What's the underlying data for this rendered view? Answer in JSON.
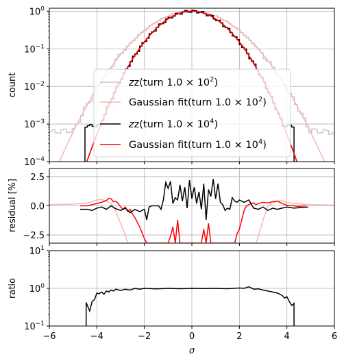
{
  "chart_data": [
    {
      "type": "line",
      "panel": "top",
      "ylabel": "count",
      "yscale": "log",
      "ylim": [
        0.0001,
        1.2
      ],
      "xlim": [
        -6,
        6
      ],
      "yticks": [
        {
          "value": 0.0001,
          "base": "10",
          "exp": "−4"
        },
        {
          "value": 0.001,
          "base": "10",
          "exp": "−3"
        },
        {
          "value": 0.01,
          "base": "10",
          "exp": "−2"
        },
        {
          "value": 0.1,
          "base": "10",
          "exp": "−1"
        },
        {
          "value": 1,
          "base": "10",
          "exp": "0"
        }
      ],
      "legend_position": "center-lower",
      "series": [
        {
          "key": "z100",
          "legend_base": "z(turn 1.0 × 10",
          "legend_exp": "2",
          "legend_tail": ")",
          "color": "#c8c8c8",
          "style": "step",
          "sigma_rms": 1.3,
          "tail_level": 0.0009
        },
        {
          "key": "fit100",
          "legend_base": "Gaussian fit(turn 1.0 × 10",
          "legend_exp": "2",
          "legend_tail": ")",
          "color": "#f7b6b6",
          "style": "line",
          "sigma": 1.3
        },
        {
          "key": "z10000",
          "legend_base": "z(turn 1.0 × 10",
          "legend_exp": "4",
          "legend_tail": ")",
          "color": "#000000",
          "style": "step",
          "sigma_rms": 1.03,
          "range": [
            -4.5,
            4.3
          ]
        },
        {
          "key": "fit10000",
          "legend_base": "Gaussian fit(turn 1.0 × 10",
          "legend_exp": "4",
          "legend_tail": ")",
          "color": "#ff0000",
          "style": "line",
          "sigma": 1.03
        }
      ]
    },
    {
      "type": "line",
      "panel": "middle",
      "ylabel": "residual [%]",
      "ylim": [
        -3.2,
        3.2
      ],
      "xlim": [
        -6,
        6
      ],
      "yticks": [
        -2.5,
        0.0,
        2.5
      ],
      "ytick_labels": [
        "−2.5",
        "0.0",
        "2.5"
      ],
      "series": [
        {
          "key": "res100",
          "color": "#f7b6b6",
          "x": [
            -6.0,
            -5.0,
            -4.6,
            -4.3,
            -4.0,
            -3.8,
            -3.6,
            -3.4,
            -3.2,
            -3.0,
            -2.8,
            -2.7,
            -2.6,
            -2.5,
            2.5,
            2.6,
            2.7,
            2.8,
            3.0,
            3.2,
            3.4,
            3.6,
            3.8,
            4.0,
            4.3,
            4.6,
            5.0,
            6.0
          ],
          "y": [
            0.1,
            0.15,
            0.2,
            0.3,
            0.5,
            0.55,
            0.4,
            0.2,
            -0.5,
            -1.5,
            -2.5,
            -3.2,
            -3.2,
            -3.2,
            -3.2,
            -3.2,
            -3.2,
            -2.6,
            -1.2,
            0.0,
            0.2,
            0.4,
            0.45,
            0.3,
            0.2,
            0.15,
            0.1,
            0.05
          ]
        },
        {
          "key": "res10000_red",
          "color": "#ff0000",
          "x": [
            -4.7,
            -4.4,
            -4.2,
            -4.0,
            -3.8,
            -3.6,
            -3.5,
            -3.4,
            -3.3,
            -3.2,
            -3.1,
            -3.0,
            -2.9,
            -2.8,
            -2.7,
            -2.6,
            -2.5,
            -2.4,
            -2.3,
            -2.2,
            -2.1,
            -2.0,
            -1.9,
            -1.8,
            -1.7,
            -1.6,
            -1.5,
            -1.4,
            -1.3,
            -1.2,
            -1.1,
            -1.0,
            -0.9,
            -0.8,
            -0.7,
            -0.6,
            -0.5,
            -0.4,
            -0.3,
            -0.2,
            -0.1,
            0.0,
            0.1,
            0.2,
            0.3,
            0.4,
            0.5,
            0.6,
            0.7,
            0.8,
            0.9,
            1.0,
            1.1,
            1.2,
            1.3,
            1.4,
            1.5,
            1.6,
            1.7,
            1.8,
            1.9,
            2.0,
            2.1,
            2.2,
            2.3,
            2.4,
            2.5,
            2.6,
            2.7,
            2.8,
            3.0,
            3.2,
            3.4,
            3.6,
            3.8,
            4.0,
            4.3,
            4.5,
            4.8
          ],
          "y": [
            0.0,
            0.0,
            0.1,
            0.2,
            0.3,
            0.45,
            0.65,
            0.6,
            0.35,
            0.4,
            0.2,
            -0.1,
            -0.3,
            -0.1,
            -0.5,
            -0.3,
            -0.7,
            -1.0,
            -1.4,
            -1.8,
            -2.3,
            -2.8,
            -3.2,
            -3.2,
            -3.2,
            -3.2,
            -3.2,
            -3.2,
            -3.2,
            -3.2,
            -3.2,
            -3.2,
            -2.6,
            -1.8,
            -3.2,
            -1.2,
            -3.2,
            -3.2,
            -3.2,
            -3.2,
            -3.2,
            -3.2,
            -3.2,
            -3.2,
            -3.2,
            -3.2,
            -2.0,
            -3.2,
            -1.5,
            -3.2,
            -3.2,
            -3.2,
            -3.2,
            -3.2,
            -3.2,
            -3.2,
            -3.2,
            -3.2,
            -3.2,
            -3.2,
            -2.4,
            -2.0,
            -1.2,
            -0.4,
            0.0,
            0.1,
            0.2,
            0.25,
            0.1,
            0.2,
            0.3,
            0.25,
            0.35,
            0.4,
            0.2,
            0.05,
            0.0,
            -0.05,
            0.0
          ]
        },
        {
          "key": "res10000_black",
          "color": "#000000",
          "x": [
            -4.7,
            -4.4,
            -4.2,
            -4.0,
            -3.8,
            -3.6,
            -3.4,
            -3.2,
            -3.0,
            -2.8,
            -2.6,
            -2.4,
            -2.2,
            -2.0,
            -1.9,
            -1.8,
            -1.7,
            -1.6,
            -1.5,
            -1.4,
            -1.3,
            -1.2,
            -1.1,
            -1.0,
            -0.9,
            -0.8,
            -0.7,
            -0.6,
            -0.5,
            -0.4,
            -0.3,
            -0.2,
            -0.1,
            0.0,
            0.1,
            0.2,
            0.3,
            0.4,
            0.5,
            0.6,
            0.7,
            0.8,
            0.9,
            1.0,
            1.1,
            1.2,
            1.3,
            1.4,
            1.5,
            1.6,
            1.7,
            1.8,
            1.9,
            2.0,
            2.2,
            2.4,
            2.6,
            2.8,
            3.0,
            3.2,
            3.4,
            3.6,
            3.8,
            4.0,
            4.3,
            4.6,
            4.9
          ],
          "y": [
            -0.3,
            -0.3,
            -0.4,
            -0.2,
            -0.1,
            -0.3,
            0.0,
            -0.25,
            -0.4,
            -0.2,
            -0.6,
            -0.3,
            -0.5,
            -0.3,
            -1.2,
            -0.1,
            0.0,
            0.0,
            0.0,
            0.0,
            -0.3,
            0.5,
            2.0,
            1.5,
            2.1,
            0.2,
            0.7,
            0.5,
            1.8,
            0.4,
            1.6,
            -0.2,
            2.2,
            0.6,
            1.6,
            0.2,
            1.2,
            -0.3,
            1.9,
            -1.2,
            1.4,
            0.8,
            2.3,
            0.6,
            1.9,
            0.3,
            0.1,
            -0.4,
            -0.2,
            -0.3,
            0.7,
            0.4,
            0.3,
            0.5,
            0.3,
            0.5,
            -0.2,
            -0.3,
            -0.1,
            -0.4,
            -0.2,
            -0.3,
            -0.2,
            -0.1,
            -0.2,
            -0.15,
            -0.1
          ]
        }
      ]
    },
    {
      "type": "line",
      "panel": "bottom",
      "ylabel": "ratio",
      "yscale": "log",
      "ylim": [
        0.1,
        10
      ],
      "xlim": [
        -6,
        6
      ],
      "xlabel": "σ",
      "yticks": [
        {
          "value": 0.1,
          "base": "10",
          "exp": "−1"
        },
        {
          "value": 1,
          "base": "10",
          "exp": "0"
        },
        {
          "value": 10,
          "base": "10",
          "exp": "1"
        }
      ],
      "xticks": [
        -6,
        -4,
        -2,
        0,
        2,
        4,
        6
      ],
      "xtick_labels": [
        "−6",
        "−4",
        "−2",
        "0",
        "2",
        "4",
        "6"
      ],
      "series": [
        {
          "key": "ratio",
          "color": "#000000",
          "x": [
            -4.45,
            -4.45,
            -4.3,
            -4.2,
            -4.1,
            -4.0,
            -3.9,
            -3.8,
            -3.7,
            -3.6,
            -3.5,
            -3.4,
            -3.3,
            -3.2,
            -3.0,
            -2.8,
            -2.6,
            -2.4,
            -2.2,
            -2.0,
            -1.5,
            -1.0,
            -0.5,
            0.0,
            0.5,
            1.0,
            1.5,
            2.0,
            2.2,
            2.4,
            2.6,
            2.8,
            3.0,
            3.2,
            3.4,
            3.6,
            3.7,
            3.8,
            3.9,
            4.0,
            4.1,
            4.2,
            4.3,
            4.3
          ],
          "y": [
            0.1,
            0.42,
            0.25,
            0.45,
            0.5,
            0.75,
            0.72,
            0.8,
            0.7,
            0.85,
            0.8,
            0.9,
            0.85,
            0.95,
            0.88,
            0.95,
            0.9,
            1.0,
            0.95,
            1.0,
            0.97,
            1.0,
            0.98,
            1.0,
            0.99,
            1.0,
            0.98,
            1.02,
            1.0,
            1.1,
            0.95,
            0.97,
            0.9,
            0.85,
            0.8,
            0.75,
            0.7,
            0.65,
            0.55,
            0.6,
            0.45,
            0.35,
            0.4,
            0.1
          ]
        }
      ]
    }
  ]
}
